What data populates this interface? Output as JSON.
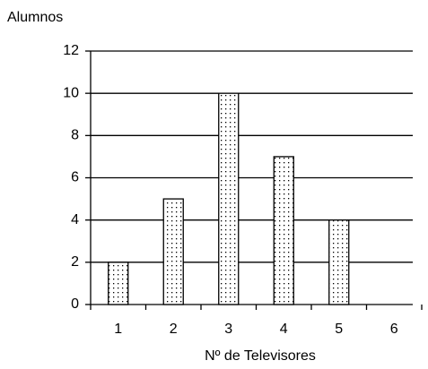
{
  "chart_data": {
    "type": "bar",
    "title": "Alumnos",
    "x_label": "Nº de Televisores",
    "categories": [
      "1",
      "2",
      "3",
      "4",
      "5",
      "6"
    ],
    "values": [
      2,
      5,
      10,
      7,
      4,
      0
    ],
    "color": "#000000",
    "ylim": [
      0,
      12
    ],
    "yticks": [
      0,
      2,
      4,
      6,
      8,
      10,
      12
    ],
    "grid": true
  }
}
